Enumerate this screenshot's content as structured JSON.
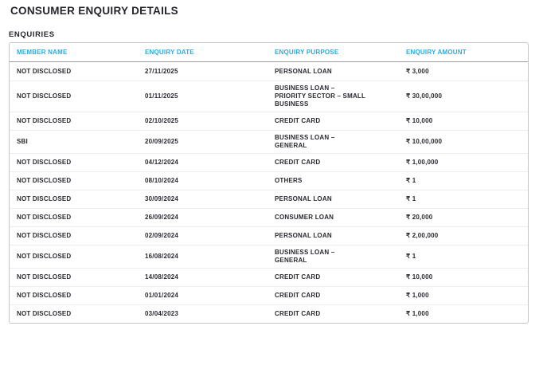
{
  "page": {
    "title": "CONSUMER ENQUIRY DETAILS",
    "section_label": "ENQUIRIES"
  },
  "colors": {
    "accent_cyan": "#29abe2",
    "text_dark": "#26252c",
    "table_border": "#c5c5c5",
    "header_divider": "#9b9b9b",
    "row_divider": "#ededed"
  },
  "table": {
    "columns": [
      "MEMBER NAME",
      "ENQUIRY DATE",
      "ENQUIRY PURPOSE",
      "ENQUIRY AMOUNT"
    ],
    "rows": [
      {
        "member_name": "NOT DISCLOSED",
        "enquiry_date": "27/11/2025",
        "enquiry_purpose": "PERSONAL LOAN",
        "enquiry_amount": "₹ 3,000"
      },
      {
        "member_name": "NOT DISCLOSED",
        "enquiry_date": "01/11/2025",
        "enquiry_purpose": "BUSINESS LOAN – PRIORITY SECTOR – SMALL BUSINESS",
        "enquiry_amount": "₹ 30,00,000"
      },
      {
        "member_name": "NOT DISCLOSED",
        "enquiry_date": "02/10/2025",
        "enquiry_purpose": "CREDIT CARD",
        "enquiry_amount": "₹ 10,000"
      },
      {
        "member_name": "SBI",
        "enquiry_date": "20/09/2025",
        "enquiry_purpose": "BUSINESS LOAN – GENERAL",
        "enquiry_amount": "₹ 10,00,000"
      },
      {
        "member_name": "NOT DISCLOSED",
        "enquiry_date": "04/12/2024",
        "enquiry_purpose": "CREDIT CARD",
        "enquiry_amount": "₹ 1,00,000"
      },
      {
        "member_name": "NOT DISCLOSED",
        "enquiry_date": "08/10/2024",
        "enquiry_purpose": "OTHERS",
        "enquiry_amount": "₹ 1"
      },
      {
        "member_name": "NOT DISCLOSED",
        "enquiry_date": "30/09/2024",
        "enquiry_purpose": "PERSONAL LOAN",
        "enquiry_amount": "₹ 1"
      },
      {
        "member_name": "NOT DISCLOSED",
        "enquiry_date": "26/09/2024",
        "enquiry_purpose": "CONSUMER LOAN",
        "enquiry_amount": "₹ 20,000"
      },
      {
        "member_name": "NOT DISCLOSED",
        "enquiry_date": "02/09/2024",
        "enquiry_purpose": "PERSONAL LOAN",
        "enquiry_amount": "₹ 2,00,000"
      },
      {
        "member_name": "NOT DISCLOSED",
        "enquiry_date": "16/08/2024",
        "enquiry_purpose": "BUSINESS LOAN – GENERAL",
        "enquiry_amount": "₹ 1"
      },
      {
        "member_name": "NOT DISCLOSED",
        "enquiry_date": "14/08/2024",
        "enquiry_purpose": "CREDIT CARD",
        "enquiry_amount": "₹ 10,000"
      },
      {
        "member_name": "NOT DISCLOSED",
        "enquiry_date": "01/01/2024",
        "enquiry_purpose": "CREDIT CARD",
        "enquiry_amount": "₹ 1,000"
      },
      {
        "member_name": "NOT DISCLOSED",
        "enquiry_date": "03/04/2023",
        "enquiry_purpose": "CREDIT CARD",
        "enquiry_amount": "₹ 1,000"
      }
    ]
  }
}
